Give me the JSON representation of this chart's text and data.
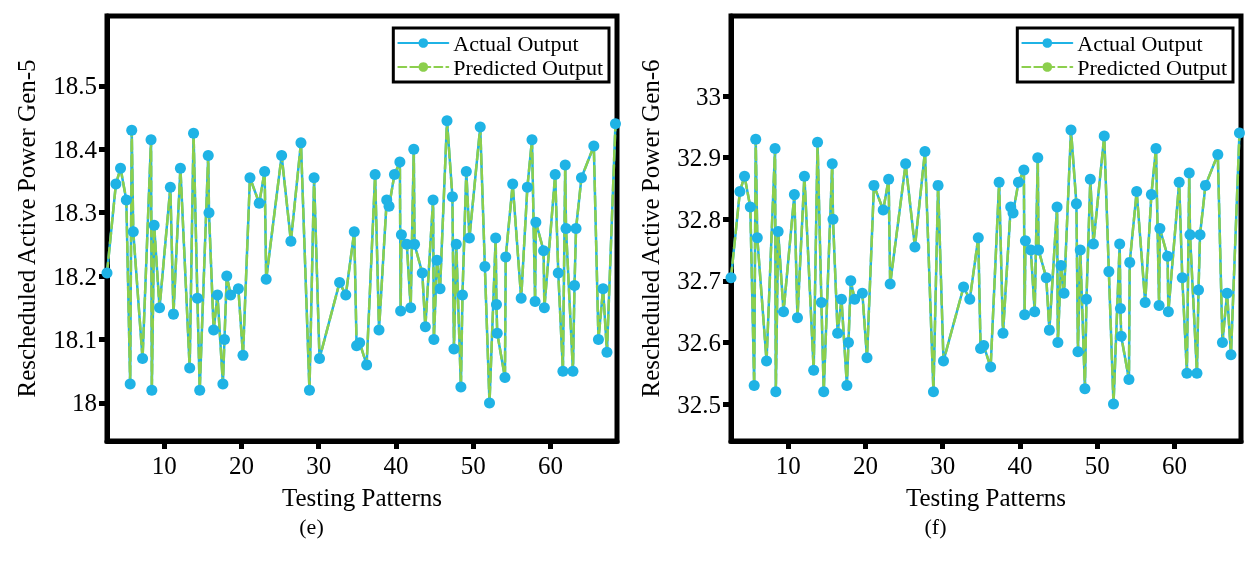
{
  "chart_data": [
    {
      "type": "line",
      "xlabel": "Testing Patterns",
      "ylabel": "Rescheduled Active Power Gen-5",
      "annotations": [
        "(e)"
      ],
      "legend": "top right",
      "grid": false,
      "xlim": [
        2.6,
        68.6
      ],
      "xticks": [
        10,
        20,
        30,
        40,
        50,
        60
      ],
      "ylim": [
        17.94,
        18.61
      ],
      "yticks": [
        18,
        18.1,
        18.2,
        18.3,
        18.4,
        18.5
      ],
      "x": [
        2.6,
        3.75,
        4.35,
        5.1,
        5.6,
        5.8,
        6.0,
        7.2,
        8.3,
        8.4,
        8.7,
        9.4,
        10.8,
        11.2,
        12.1,
        13.3,
        13.8,
        14.3,
        14.6,
        15.7,
        15.8,
        16.4,
        16.9,
        17.6,
        17.8,
        18.1,
        18.6,
        19.6,
        20.2,
        21.1,
        22.3,
        23.0,
        23.2,
        25.2,
        26.4,
        27.7,
        28.8,
        29.4,
        30.1,
        32.7,
        33.5,
        34.6,
        34.9,
        35.3,
        36.2,
        37.3,
        37.8,
        38.8,
        39.1,
        39.8,
        40.5,
        40.6,
        40.7,
        41.4,
        41.9,
        42.3,
        42.4,
        43.4,
        43.8,
        44.8,
        44.9,
        45.3,
        45.7,
        46.6,
        47.3,
        47.5,
        47.8,
        48.4,
        48.6,
        49.1,
        49.5,
        50.9,
        51.5,
        52.1,
        52.9,
        53.0,
        53.1,
        54.1,
        54.2,
        55.1,
        56.2,
        57.0,
        57.6,
        58.0,
        58.1,
        59.1,
        59.2,
        60.6,
        61.0,
        61.6,
        61.9,
        62.0,
        62.9,
        63.1,
        63.3,
        64.0,
        65.6,
        66.2,
        66.8,
        67.3,
        68.4
      ],
      "series": [
        {
          "name": "Actual Output",
          "color": "#1fb3e5",
          "marker": "circle",
          "line_style": "solid",
          "values": [
            18.205,
            18.345,
            18.37,
            18.32,
            18.03,
            18.43,
            18.27,
            18.07,
            18.415,
            18.02,
            18.28,
            18.15,
            18.34,
            18.14,
            18.37,
            18.055,
            18.425,
            18.165,
            18.02,
            18.39,
            18.3,
            18.115,
            18.17,
            18.03,
            18.1,
            18.2,
            18.17,
            18.18,
            18.075,
            18.355,
            18.315,
            18.365,
            18.195,
            18.39,
            18.255,
            18.41,
            18.02,
            18.355,
            18.07,
            18.19,
            18.17,
            18.27,
            18.09,
            18.095,
            18.06,
            18.36,
            18.115,
            18.32,
            18.31,
            18.36,
            18.38,
            18.145,
            18.265,
            18.25,
            18.15,
            18.4,
            18.25,
            18.205,
            18.12,
            18.32,
            18.1,
            18.225,
            18.18,
            18.445,
            18.325,
            18.085,
            18.25,
            18.025,
            18.17,
            18.365,
            18.26,
            18.435,
            18.215,
            18.0,
            18.26,
            18.155,
            18.11,
            18.04,
            18.23,
            18.345,
            18.165,
            18.34,
            18.415,
            18.16,
            18.285,
            18.24,
            18.15,
            18.36,
            18.205,
            18.05,
            18.375,
            18.275,
            18.05,
            18.185,
            18.275,
            18.355,
            18.405,
            18.1,
            18.18,
            18.08,
            18.44
          ]
        },
        {
          "name": "Predicted Output",
          "color": "#8ccf4d",
          "marker": "none",
          "line_style": "dashed",
          "values": [
            18.205,
            18.345,
            18.37,
            18.32,
            18.03,
            18.43,
            18.27,
            18.07,
            18.415,
            18.02,
            18.28,
            18.15,
            18.34,
            18.14,
            18.37,
            18.055,
            18.425,
            18.165,
            18.02,
            18.39,
            18.3,
            18.115,
            18.17,
            18.03,
            18.1,
            18.2,
            18.17,
            18.18,
            18.075,
            18.355,
            18.315,
            18.365,
            18.195,
            18.39,
            18.255,
            18.41,
            18.02,
            18.355,
            18.07,
            18.19,
            18.17,
            18.27,
            18.09,
            18.095,
            18.06,
            18.36,
            18.115,
            18.32,
            18.31,
            18.36,
            18.38,
            18.145,
            18.265,
            18.25,
            18.15,
            18.4,
            18.25,
            18.205,
            18.12,
            18.32,
            18.1,
            18.225,
            18.18,
            18.445,
            18.325,
            18.085,
            18.25,
            18.025,
            18.17,
            18.365,
            18.26,
            18.435,
            18.215,
            18.0,
            18.26,
            18.155,
            18.11,
            18.04,
            18.23,
            18.345,
            18.165,
            18.34,
            18.415,
            18.16,
            18.285,
            18.24,
            18.15,
            18.36,
            18.205,
            18.05,
            18.375,
            18.275,
            18.05,
            18.185,
            18.275,
            18.355,
            18.405,
            18.1,
            18.18,
            18.08,
            18.44
          ]
        }
      ]
    },
    {
      "type": "line",
      "xlabel": "Testing Patterns",
      "ylabel": "Rescheduled Active Power Gen-6",
      "annotations": [
        "(f)"
      ],
      "legend": "top right",
      "grid": false,
      "xlim": [
        2.6,
        68.6
      ],
      "xticks": [
        10,
        20,
        30,
        40,
        50,
        60
      ],
      "ylim": [
        32.44,
        33.13
      ],
      "yticks": [
        32.5,
        32.6,
        32.7,
        32.8,
        32.9,
        33
      ],
      "x": [
        2.6,
        3.75,
        4.35,
        5.1,
        5.6,
        5.8,
        6.0,
        7.2,
        8.3,
        8.4,
        8.7,
        9.4,
        10.8,
        11.2,
        12.1,
        13.3,
        13.8,
        14.3,
        14.6,
        15.7,
        15.8,
        16.4,
        16.9,
        17.6,
        17.8,
        18.1,
        18.6,
        19.6,
        20.2,
        21.1,
        22.3,
        23.0,
        23.2,
        25.2,
        26.4,
        27.7,
        28.8,
        29.4,
        30.1,
        32.7,
        33.5,
        34.6,
        34.9,
        35.3,
        36.2,
        37.3,
        37.8,
        38.8,
        39.1,
        39.8,
        40.5,
        40.6,
        40.7,
        41.4,
        41.9,
        42.3,
        42.4,
        43.4,
        43.8,
        44.8,
        44.9,
        45.3,
        45.7,
        46.6,
        47.3,
        47.5,
        47.8,
        48.4,
        48.6,
        49.1,
        49.5,
        50.9,
        51.5,
        52.1,
        52.9,
        53.0,
        53.1,
        54.1,
        54.2,
        55.1,
        56.2,
        57.0,
        57.6,
        58.0,
        58.1,
        59.1,
        59.2,
        60.6,
        61.0,
        61.6,
        61.9,
        62.0,
        62.9,
        63.1,
        63.3,
        64.0,
        65.6,
        66.2,
        66.8,
        67.3,
        68.4
      ],
      "series": [
        {
          "name": "Actual Output",
          "color": "#1fb3e5",
          "marker": "circle",
          "line_style": "solid",
          "values": [
            32.705,
            32.845,
            32.87,
            32.82,
            32.53,
            32.93,
            32.77,
            32.57,
            32.915,
            32.52,
            32.78,
            32.65,
            32.84,
            32.64,
            32.87,
            32.555,
            32.925,
            32.665,
            32.52,
            32.89,
            32.8,
            32.615,
            32.67,
            32.53,
            32.6,
            32.7,
            32.67,
            32.68,
            32.575,
            32.855,
            32.815,
            32.865,
            32.695,
            32.89,
            32.755,
            32.91,
            32.52,
            32.855,
            32.57,
            32.69,
            32.67,
            32.77,
            32.59,
            32.595,
            32.56,
            32.86,
            32.615,
            32.82,
            32.81,
            32.86,
            32.88,
            32.645,
            32.765,
            32.75,
            32.65,
            32.9,
            32.75,
            32.705,
            32.62,
            32.82,
            32.6,
            32.725,
            32.68,
            32.945,
            32.825,
            32.585,
            32.75,
            32.525,
            32.67,
            32.865,
            32.76,
            32.935,
            32.715,
            32.5,
            32.76,
            32.655,
            32.61,
            32.54,
            32.73,
            32.845,
            32.665,
            32.84,
            32.915,
            32.66,
            32.785,
            32.74,
            32.65,
            32.86,
            32.705,
            32.55,
            32.875,
            32.775,
            32.55,
            32.685,
            32.775,
            32.855,
            32.905,
            32.6,
            32.68,
            32.58,
            32.94
          ]
        },
        {
          "name": "Predicted Output",
          "color": "#8ccf4d",
          "marker": "none",
          "line_style": "dashed",
          "values": [
            32.705,
            32.845,
            32.87,
            32.82,
            32.53,
            32.93,
            32.77,
            32.57,
            32.915,
            32.52,
            32.78,
            32.65,
            32.84,
            32.64,
            32.87,
            32.555,
            32.925,
            32.665,
            32.52,
            32.89,
            32.8,
            32.615,
            32.67,
            32.53,
            32.6,
            32.7,
            32.67,
            32.68,
            32.575,
            32.855,
            32.815,
            32.865,
            32.695,
            32.89,
            32.755,
            32.91,
            32.52,
            32.855,
            32.57,
            32.69,
            32.67,
            32.77,
            32.59,
            32.595,
            32.56,
            32.86,
            32.615,
            32.82,
            32.81,
            32.86,
            32.88,
            32.645,
            32.765,
            32.75,
            32.65,
            32.9,
            32.75,
            32.705,
            32.62,
            32.82,
            32.6,
            32.725,
            32.68,
            32.945,
            32.825,
            32.585,
            32.75,
            32.525,
            32.67,
            32.865,
            32.76,
            32.935,
            32.715,
            32.5,
            32.76,
            32.655,
            32.61,
            32.54,
            32.73,
            32.845,
            32.665,
            32.84,
            32.915,
            32.66,
            32.785,
            32.74,
            32.65,
            32.86,
            32.705,
            32.55,
            32.875,
            32.775,
            32.55,
            32.685,
            32.775,
            32.855,
            32.905,
            32.6,
            32.68,
            32.58,
            32.94
          ]
        }
      ]
    }
  ]
}
